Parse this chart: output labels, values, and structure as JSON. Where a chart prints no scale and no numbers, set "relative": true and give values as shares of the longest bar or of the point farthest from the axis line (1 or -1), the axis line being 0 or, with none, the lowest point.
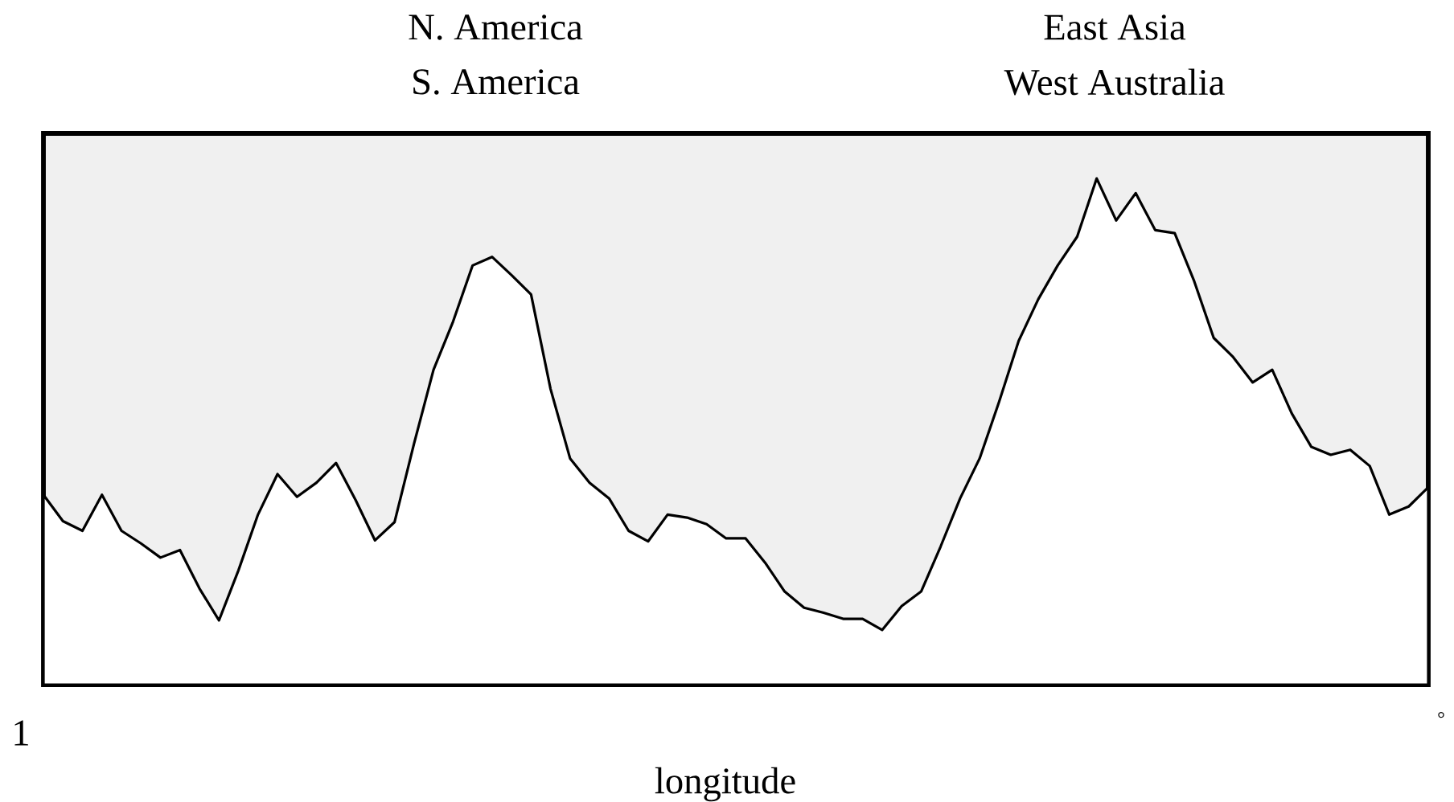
{
  "chart_data": {
    "type": "area",
    "relative": true,
    "xlabel": "longitude",
    "color": "#ffffff",
    "annotations": [
      "N. America",
      "S. America",
      "East Asia",
      "West Australia",
      "1",
      "°"
    ],
    "categories": [
      null,
      null,
      null,
      null,
      null,
      null,
      null,
      null,
      null,
      null,
      null,
      null,
      null,
      null,
      null,
      null,
      null,
      null,
      null,
      null,
      null,
      null,
      null,
      null,
      null,
      null,
      null,
      null,
      null,
      null,
      null,
      null,
      null,
      null,
      null,
      null,
      null,
      null,
      null,
      null,
      null,
      null,
      null,
      null,
      null,
      null,
      null,
      null,
      null,
      null,
      null,
      null,
      null,
      null,
      null,
      null,
      null,
      null,
      null,
      null,
      null,
      null,
      null,
      null,
      null,
      null,
      null,
      null,
      null,
      null,
      null,
      null
    ],
    "values": [
      0.375,
      0.323,
      0.304,
      0.375,
      0.304,
      0.279,
      0.251,
      0.266,
      0.19,
      0.127,
      0.226,
      0.336,
      0.416,
      0.371,
      0.399,
      0.438,
      0.365,
      0.285,
      0.321,
      0.476,
      0.622,
      0.717,
      0.828,
      0.845,
      0.809,
      0.771,
      0.584,
      0.447,
      0.399,
      0.368,
      0.304,
      0.283,
      0.336,
      0.33,
      0.317,
      0.289,
      0.289,
      0.241,
      0.184,
      0.152,
      0.142,
      0.13,
      0.13,
      0.108,
      0.155,
      0.184,
      0.273,
      0.368,
      0.447,
      0.559,
      0.679,
      0.761,
      0.828,
      0.885,
      1.0,
      0.917,
      0.971,
      0.898,
      0.892,
      0.797,
      0.685,
      0.647,
      0.597,
      0.622,
      0.536,
      0.47,
      0.454,
      0.464,
      0.432,
      0.336,
      0.352,
      0.39
    ]
  }
}
